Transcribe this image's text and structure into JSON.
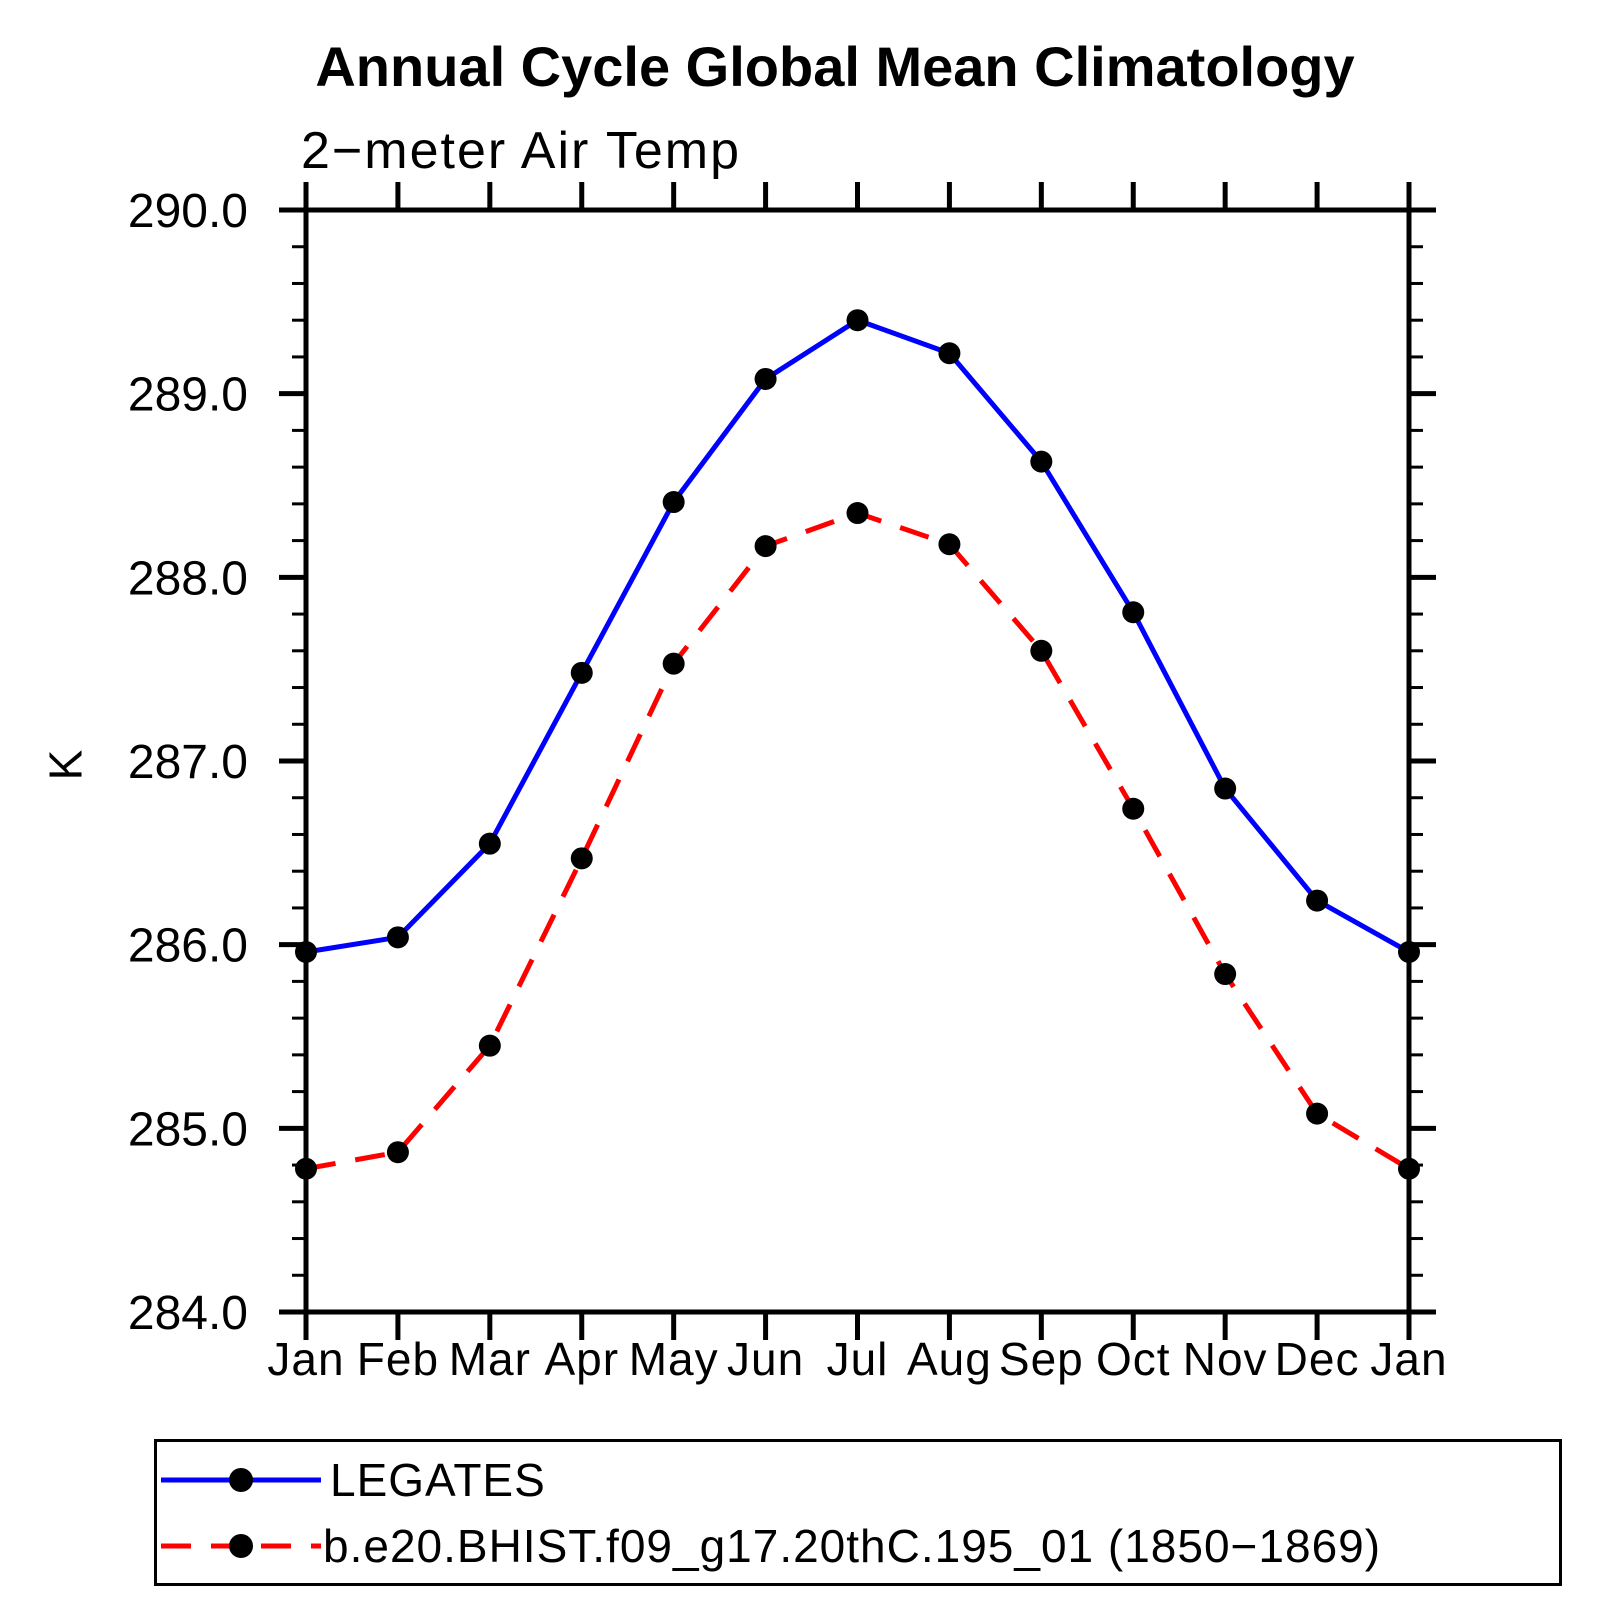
{
  "title": "Annual Cycle Global Mean Climatology",
  "subtitle": "2−meter Air Temp",
  "chart_data": {
    "type": "line",
    "x_categories": [
      "Jan",
      "Feb",
      "Mar",
      "Apr",
      "May",
      "Jun",
      "Jul",
      "Aug",
      "Sep",
      "Oct",
      "Nov",
      "Dec",
      "Jan"
    ],
    "ylabel": "K",
    "ylim": [
      284.0,
      290.0
    ],
    "y_major_step": 1.0,
    "y_minor_step": 0.2,
    "y_tick_decimals": 1,
    "y_tick_labels": [
      "284.0",
      "285.0",
      "286.0",
      "287.0",
      "288.0",
      "289.0",
      "290.0"
    ],
    "grid": false,
    "axis_color": "#000000",
    "marker": "filled-circle",
    "legend_position": "bottom-left-box",
    "series": [
      {
        "name": "LEGATES",
        "color": "#0000ff",
        "line_style": "solid",
        "marker_color": "#000000",
        "values": [
          285.96,
          286.04,
          286.55,
          287.48,
          288.41,
          289.08,
          289.4,
          289.22,
          288.63,
          287.81,
          286.85,
          286.24,
          285.96
        ]
      },
      {
        "name": "b.e20.BHIST.f09_g17.20thC.195_01 (1850−1869)",
        "color": "#ff0000",
        "line_style": "dashed",
        "marker_color": "#000000",
        "values": [
          284.78,
          284.87,
          285.45,
          286.47,
          287.53,
          288.17,
          288.35,
          288.18,
          287.6,
          286.74,
          285.84,
          285.08,
          284.78
        ]
      }
    ]
  }
}
